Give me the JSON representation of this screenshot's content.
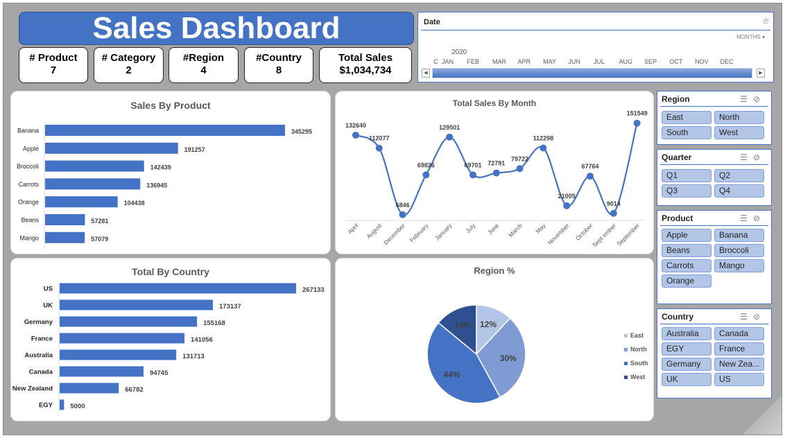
{
  "dashboard": {
    "title": "Sales Dashboard"
  },
  "kpis": [
    {
      "label": "# Product",
      "value": "7"
    },
    {
      "label": "# Category",
      "value": "2"
    },
    {
      "label": "#Region",
      "value": "4"
    },
    {
      "label": "#Country",
      "value": "8"
    },
    {
      "label": "Total Sales",
      "value": "$1,034,734"
    }
  ],
  "timeline": {
    "title": "Date",
    "unit_label": "MONTHS ▾",
    "year": "2020",
    "months": [
      "C",
      "JAN",
      "FEB",
      "MAR",
      "APR",
      "MAY",
      "JUN",
      "JUL",
      "AUG",
      "SEP",
      "OCT",
      "NOV",
      "DEC"
    ],
    "left_arrow": "◀",
    "right_arrow": "▶"
  },
  "charts": {
    "product": {
      "title": "Sales By Product",
      "chart_data": {
        "type": "bar",
        "orientation": "horizontal",
        "categories": [
          "Banana",
          "Apple",
          "Broccoli",
          "Carrots",
          "Orange",
          "Beans",
          "Mango"
        ],
        "values": [
          345295,
          191257,
          142439,
          136945,
          104438,
          57281,
          57079
        ],
        "max": 345295
      }
    },
    "month": {
      "title": "Total Sales By Month",
      "chart_data": {
        "type": "line",
        "categories": [
          "April",
          "August",
          "December",
          "February",
          "January",
          "July",
          "June",
          "March",
          "May",
          "November",
          "October",
          "Sept ember",
          "September"
        ],
        "values": [
          132640,
          112077,
          6846,
          69826,
          129501,
          69701,
          72791,
          79722,
          112298,
          21005,
          67764,
          9014,
          151549
        ],
        "ylim": [
          0,
          160000
        ]
      }
    },
    "country": {
      "title": "Total By Country",
      "chart_data": {
        "type": "bar",
        "orientation": "horizontal",
        "categories": [
          "US",
          "UK",
          "Germany",
          "France",
          "Australia",
          "Canada",
          "New Zealand",
          "EGY"
        ],
        "values": [
          267133,
          173137,
          155168,
          141056,
          131713,
          94745,
          66782,
          5000
        ],
        "max": 267133
      }
    },
    "region": {
      "title": "Region %",
      "chart_data": {
        "type": "pie",
        "labels": [
          "East",
          "North",
          "South",
          "West"
        ],
        "values": [
          12,
          30,
          44,
          14
        ],
        "value_labels": [
          "12%",
          "30%",
          "44%",
          "14%"
        ],
        "colors": [
          "#b4c6e7",
          "#7f9bd4",
          "#4472c4",
          "#2f4f8f"
        ]
      }
    }
  },
  "slicers": {
    "region": {
      "title": "Region",
      "items": [
        "East",
        "North",
        "South",
        "West"
      ]
    },
    "quarter": {
      "title": "Quarter",
      "items": [
        "Q1",
        "Q2",
        "Q3",
        "Q4"
      ]
    },
    "product": {
      "title": "Product",
      "items": [
        "Apple",
        "Banana",
        "Beans",
        "Broccoli",
        "Carrots",
        "Mango",
        "Orange"
      ]
    },
    "country": {
      "title": "Country",
      "items": [
        "Australia",
        "Canada",
        "EGY",
        "France",
        "Germany",
        "New Zea...",
        "UK",
        "US"
      ]
    },
    "icons": {
      "multi_select": "☰",
      "clear_filter": "⊘"
    }
  },
  "colors": {
    "accent": "#4472c4",
    "canvas": "#a6a6a6"
  }
}
